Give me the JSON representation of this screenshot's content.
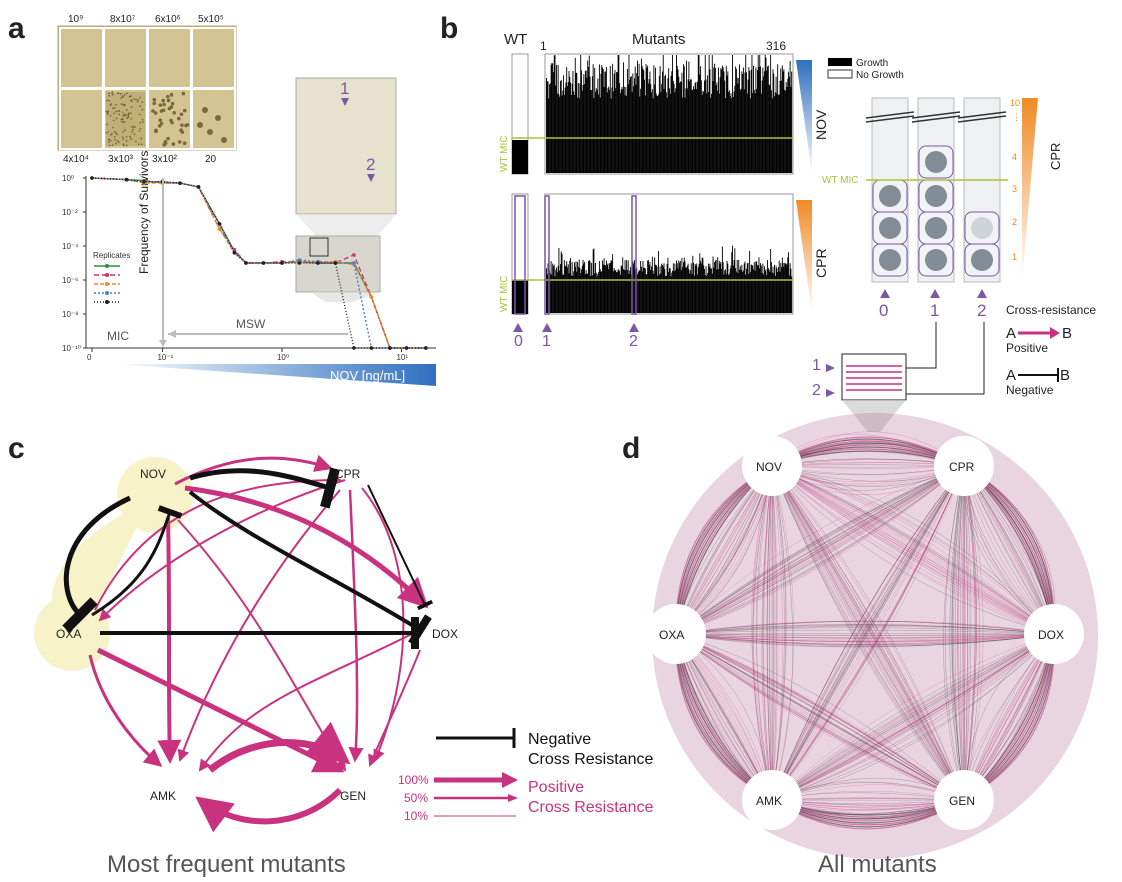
{
  "panels": {
    "a": {
      "letter": "a",
      "dilutions_top": [
        "10⁹",
        "8x10⁷",
        "6x10⁶",
        "5x10⁵"
      ],
      "dilutions_bottom": [
        "4x10⁴",
        "3x10³",
        "3x10²",
        "20"
      ],
      "ylabel": "Frequency of Survivors",
      "xlabel": "NOV [ng/mL]",
      "mic_label": "MIC",
      "msw_label": "MSW",
      "legend_title": "Replicates",
      "colony_marks": [
        "1",
        "2"
      ],
      "y_ticks": [
        "10⁰",
        "10⁻²",
        "10⁻⁴",
        "10⁻⁶",
        "10⁻⁸",
        "10⁻¹⁰"
      ],
      "x_ticks": [
        "0",
        "10⁻¹",
        "10⁰",
        "10¹"
      ]
    },
    "b": {
      "letter": "b",
      "wt_label": "WT",
      "mutants_label": "Mutants",
      "mutant_start": "1",
      "mutant_end": "316",
      "wt_mic": "WT MIC",
      "drug_top": "NOV",
      "drug_bottom": "CPR",
      "legend_growth": "Growth",
      "legend_nogrowth": "No Growth",
      "markers": [
        "0",
        "1",
        "2"
      ],
      "cpr_scale": [
        "10",
        "⋮",
        "4",
        "3",
        "2",
        "1"
      ],
      "cross_resistance": "Cross-resistance",
      "positive": "Positive",
      "negative": "Negative",
      "a_letter": "A",
      "b_letter": "B"
    },
    "c": {
      "letter": "c",
      "nodes": [
        "NOV",
        "CPR",
        "OXA",
        "DOX",
        "AMK",
        "GEN"
      ],
      "caption": "Most frequent mutants",
      "legend_negative": [
        "Negative",
        "Cross Resistance"
      ],
      "legend_positive": [
        "Positive",
        "Cross Resistance"
      ],
      "legend_widths": [
        "100%",
        "50%",
        "10%"
      ]
    },
    "d": {
      "letter": "d",
      "nodes": [
        "NOV",
        "CPR",
        "OXA",
        "DOX",
        "AMK",
        "GEN"
      ],
      "caption": "All mutants"
    }
  },
  "chart_data": {
    "type": "line",
    "title": "",
    "xlabel": "NOV [ng/mL]",
    "ylabel": "Frequency of Survivors",
    "log_x": true,
    "log_y": true,
    "ylim": [
      1e-10,
      1
    ],
    "x": [
      0,
      0.05,
      0.07,
      0.1,
      0.14,
      0.2,
      0.3,
      0.4,
      0.5,
      0.7,
      1,
      1.4,
      2,
      2.8,
      4,
      5.6,
      8,
      11,
      16
    ],
    "series": [
      {
        "values": [
          1,
          0.8,
          0.7,
          0.5,
          0.5,
          0.3,
          0.002,
          5e-05,
          1e-05,
          1e-05,
          1e-05,
          1.2e-05,
          1e-05,
          1e-05,
          1e-05,
          1e-07,
          1e-10,
          1e-10,
          1e-10
        ]
      },
      {
        "values": [
          1,
          0.8,
          0.6,
          0.6,
          0.5,
          0.3,
          0.001,
          6e-05,
          1e-05,
          1e-05,
          1.2e-05,
          1.2e-05,
          1e-05,
          1e-05,
          3e-05,
          1e-07,
          1e-10,
          1e-10,
          1e-10
        ]
      },
      {
        "values": [
          1,
          0.8,
          0.5,
          0.5,
          0.5,
          0.3,
          0.001,
          4e-05,
          1e-05,
          1e-05,
          1e-05,
          1.2e-05,
          1.2e-05,
          1.2e-05,
          8e-06,
          1e-07,
          1e-10,
          1e-10,
          1e-10
        ]
      },
      {
        "values": [
          1,
          0.8,
          0.6,
          0.6,
          0.5,
          0.3,
          0.002,
          4e-05,
          1e-05,
          1e-05,
          1e-05,
          1.5e-05,
          1.2e-05,
          1e-05,
          1e-05,
          1e-10,
          1e-10,
          1e-10,
          1e-10
        ]
      },
      {
        "values": [
          1,
          0.8,
          0.6,
          0.6,
          0.5,
          0.3,
          0.002,
          4e-05,
          1e-05,
          1e-05,
          1e-05,
          1e-05,
          1e-05,
          1e-05,
          1e-10,
          1e-10,
          1e-10,
          1e-10,
          1e-10
        ]
      }
    ],
    "colors": [
      "#2e8b3a",
      "#d1307c",
      "#f08a24",
      "#4a7fc4",
      "#222222"
    ]
  }
}
